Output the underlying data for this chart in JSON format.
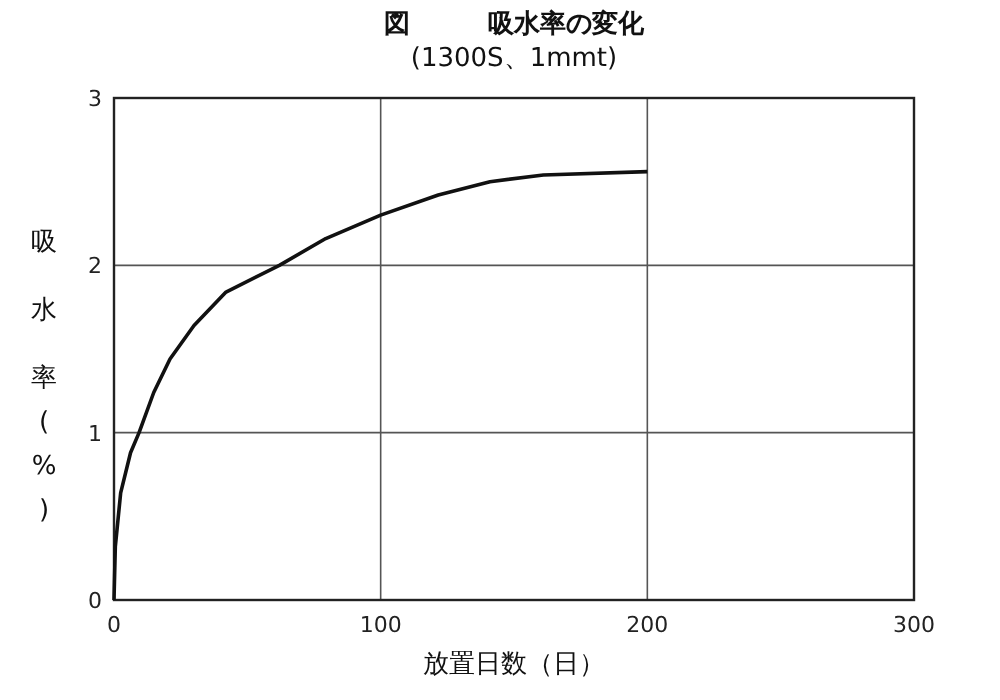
{
  "chart_data": {
    "type": "line",
    "title": "図　　　吸水率の変化",
    "subtitle": "(1300S、1mmt)",
    "xlabel": "放置日数（日）",
    "ylabel": "吸水率(%)",
    "x": [
      0,
      0.5,
      2.5,
      6.2,
      9.4,
      14.9,
      21,
      30,
      42,
      62,
      79.4,
      100,
      121.6,
      141,
      161,
      200
    ],
    "series": [
      {
        "color": "#111111",
        "values": [
          0,
          0.32,
          0.64,
          0.88,
          1.0,
          1.24,
          1.44,
          1.64,
          1.84,
          2.0,
          2.16,
          2.3,
          2.42,
          2.5,
          2.54,
          2.56
        ]
      }
    ],
    "xlim": [
      0,
      300
    ],
    "xticks": [
      0,
      100,
      200,
      300
    ],
    "ylim": [
      0,
      3
    ],
    "yticks": [
      0,
      1,
      2,
      3
    ],
    "grid": true,
    "marker": "none",
    "line_style": "solid"
  }
}
